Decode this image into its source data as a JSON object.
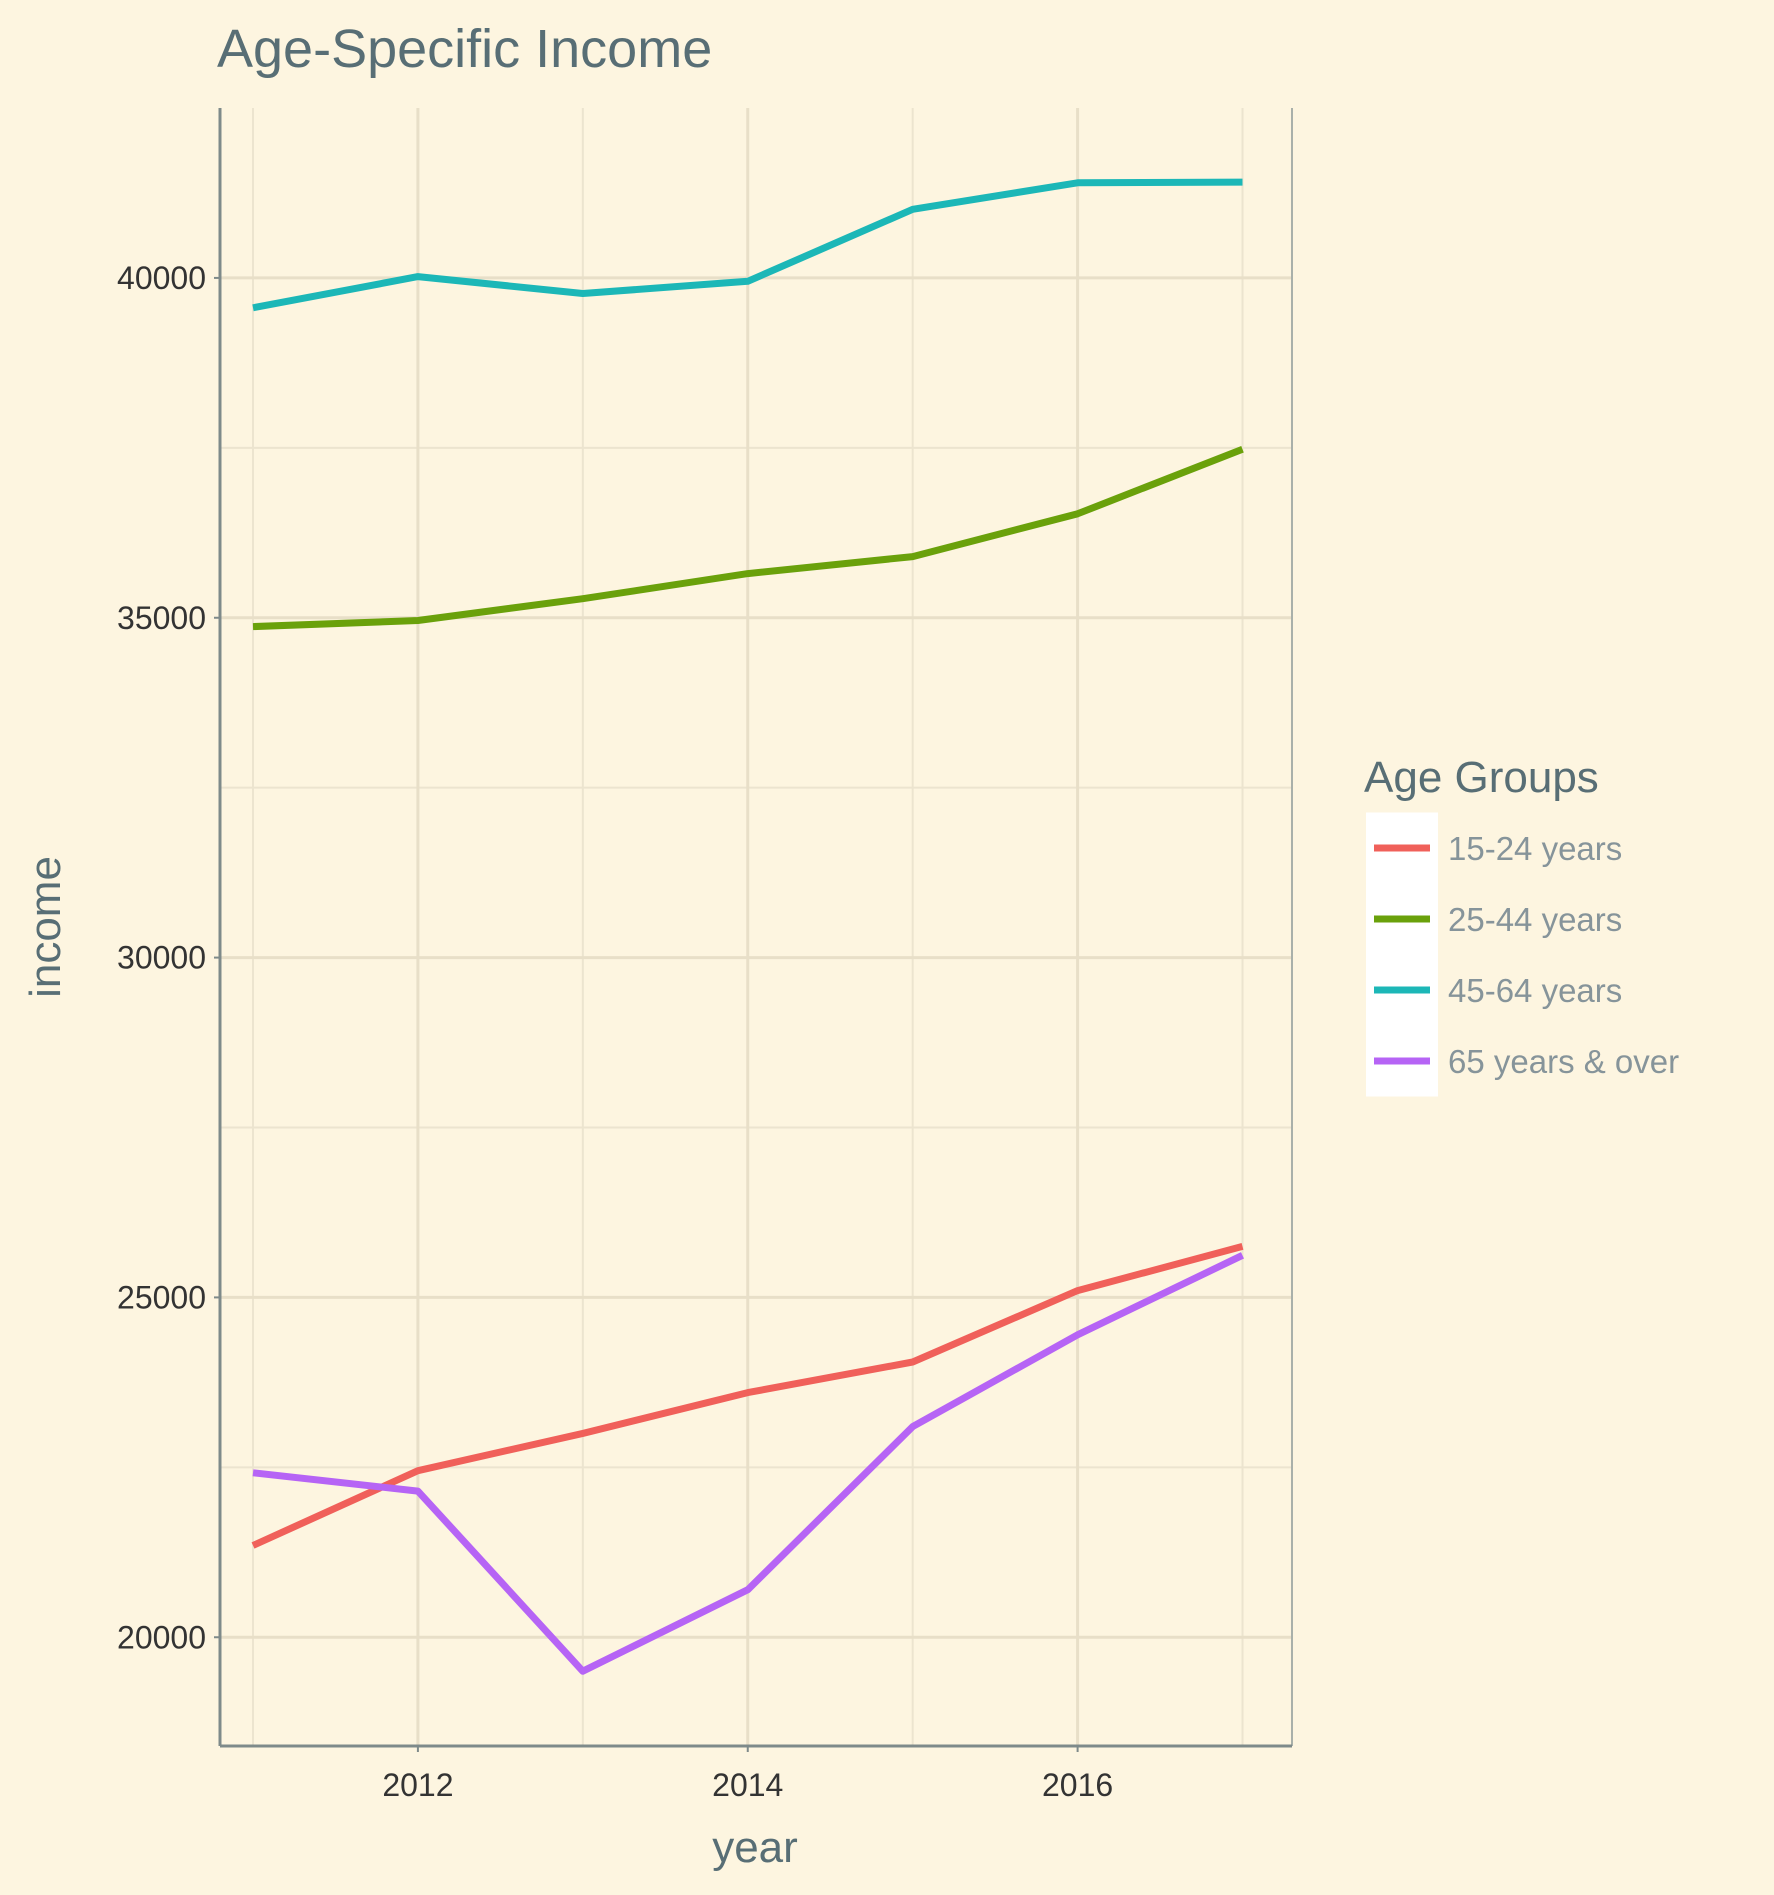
{
  "chart_data": {
    "type": "line",
    "title": "Age-Specific Income",
    "xlabel": "year",
    "ylabel": "income",
    "x": [
      2011,
      2012,
      2013,
      2014,
      2015,
      2016,
      2017
    ],
    "xlim": [
      2010.8,
      2017.3
    ],
    "ylim": [
      18400,
      42500
    ],
    "x_ticks": [
      "2012",
      "2014",
      "2016"
    ],
    "y_ticks": [
      "20000",
      "25000",
      "30000",
      "35000",
      "40000"
    ],
    "grid": true,
    "legend": {
      "title": "Age Groups",
      "placement": "right"
    },
    "series": [
      {
        "name": "15-24 years",
        "color": "#f0605a",
        "values": [
          21350,
          22450,
          23000,
          23600,
          24050,
          25100,
          25750
        ]
      },
      {
        "name": "25-44 years",
        "color": "#6aa10b",
        "values": [
          34870,
          34960,
          35280,
          35650,
          35900,
          36530,
          37480
        ]
      },
      {
        "name": "45-64 years",
        "color": "#1cb7b7",
        "values": [
          39560,
          40020,
          39770,
          39950,
          41010,
          41400,
          41410
        ]
      },
      {
        "name": "65 years & over",
        "color": "#b664f5",
        "values": [
          22420,
          22150,
          19500,
          20700,
          23100,
          24450,
          25620
        ]
      }
    ]
  }
}
